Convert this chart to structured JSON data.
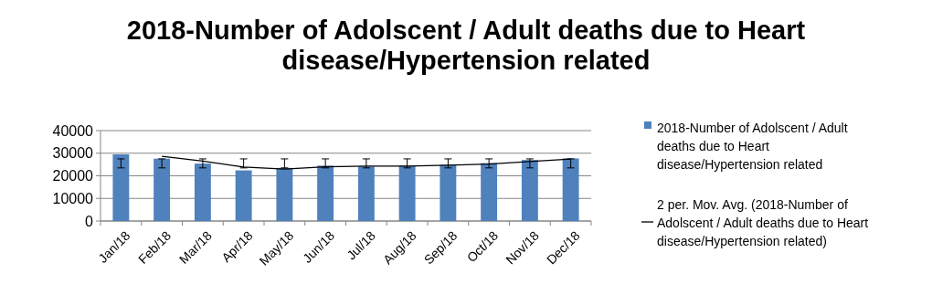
{
  "chart_data": {
    "type": "bar",
    "title": "2018-Number of Adolscent / Adult deaths due to Heart disease/Hypertension related",
    "categories": [
      "Jan/18",
      "Feb/18",
      "Mar/18",
      "Apr/18",
      "May/18",
      "Jun/18",
      "Jul/18",
      "Aug/18",
      "Sep/18",
      "Oct/18",
      "Nov/18",
      "Dec/18"
    ],
    "series": [
      {
        "name": "2018-Number of Adolscent / Adult deaths due to Heart disease/Hypertension related",
        "color": "#4f81bd",
        "values": [
          29500,
          27600,
          25400,
          22400,
          23500,
          24500,
          24100,
          24500,
          24800,
          25600,
          27000,
          27700
        ],
        "errors": [
          [
            23500,
            27500
          ],
          [
            23500,
            27500
          ],
          [
            23500,
            27500
          ],
          [
            23500,
            27500
          ],
          [
            23500,
            27500
          ],
          [
            23500,
            27500
          ],
          [
            23500,
            27500
          ],
          [
            23500,
            27500
          ],
          [
            23500,
            27500
          ],
          [
            23500,
            27500
          ],
          [
            23500,
            27500
          ],
          [
            23500,
            27500
          ]
        ]
      },
      {
        "name": "2 per. Mov. Avg. (2018-Number of Adolscent / Adult deaths due to Heart disease/Hypertension related)",
        "type": "line",
        "color": "#000000",
        "values": [
          null,
          28600,
          26500,
          23900,
          23000,
          24000,
          24300,
          24300,
          24700,
          25200,
          26300,
          27400
        ]
      }
    ],
    "ylim": [
      0,
      40000
    ],
    "yticks": [
      0,
      10000,
      20000,
      30000,
      40000
    ],
    "grid": "y",
    "legend": "right"
  }
}
